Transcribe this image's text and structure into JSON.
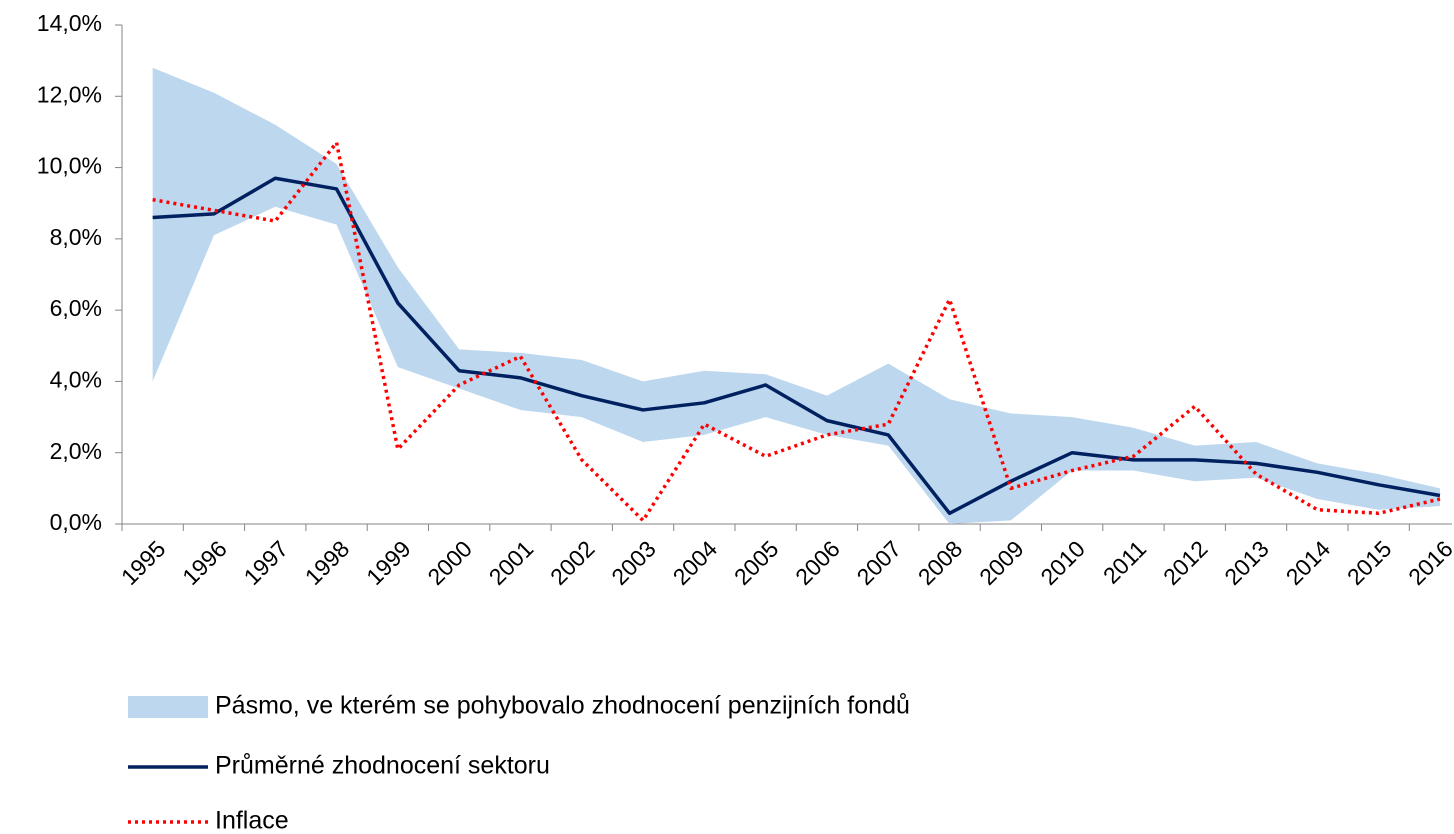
{
  "chart_data": {
    "type": "line",
    "categories": [
      "1995",
      "1996",
      "1997",
      "1998",
      "1999",
      "2000",
      "2001",
      "2002",
      "2003",
      "2004",
      "2005",
      "2006",
      "2007",
      "2008",
      "2009",
      "2010",
      "2011",
      "2012",
      "2013",
      "2014",
      "2015",
      "2016"
    ],
    "series": [
      {
        "name": "Pásmo, ve kterém se pohybovalo zhodnocení penzijních fondů",
        "color": "#bdd7ee",
        "kind": "band",
        "upper": [
          12.8,
          12.1,
          11.2,
          10.1,
          7.2,
          4.9,
          4.8,
          4.6,
          4.0,
          4.3,
          4.2,
          3.6,
          4.5,
          3.5,
          3.1,
          3.0,
          2.7,
          2.2,
          2.3,
          1.7,
          1.4,
          1.0
        ],
        "lower": [
          4.0,
          8.1,
          8.9,
          8.4,
          4.4,
          3.8,
          3.2,
          3.0,
          2.3,
          2.5,
          3.0,
          2.5,
          2.2,
          0.0,
          0.1,
          1.5,
          1.5,
          1.2,
          1.3,
          0.7,
          0.4,
          0.5
        ]
      },
      {
        "name": "Průměrné zhodnocení sektoru",
        "color": "#002060",
        "kind": "solid",
        "values": [
          8.6,
          8.7,
          9.7,
          9.4,
          6.2,
          4.3,
          4.1,
          3.6,
          3.2,
          3.4,
          3.9,
          2.9,
          2.5,
          0.3,
          1.2,
          2.0,
          1.8,
          1.8,
          1.7,
          1.45,
          1.1,
          0.8
        ]
      },
      {
        "name": "Inflace",
        "color": "#ff0000",
        "kind": "dotted",
        "values": [
          9.1,
          8.8,
          8.5,
          10.7,
          2.1,
          3.9,
          4.7,
          1.8,
          0.1,
          2.8,
          1.9,
          2.5,
          2.8,
          6.3,
          1.0,
          1.5,
          1.9,
          3.3,
          1.4,
          0.4,
          0.3,
          0.7
        ]
      }
    ],
    "ylim": [
      0,
      14
    ],
    "yticks": [
      {
        "value": 0,
        "label": "0,0%"
      },
      {
        "value": 2,
        "label": "2,0%"
      },
      {
        "value": 4,
        "label": "4,0%"
      },
      {
        "value": 6,
        "label": "6,0%"
      },
      {
        "value": 8,
        "label": "8,0%"
      },
      {
        "value": 10,
        "label": "10,0%"
      },
      {
        "value": 12,
        "label": "12,0%"
      },
      {
        "value": 14,
        "label": "14,0%"
      }
    ]
  }
}
